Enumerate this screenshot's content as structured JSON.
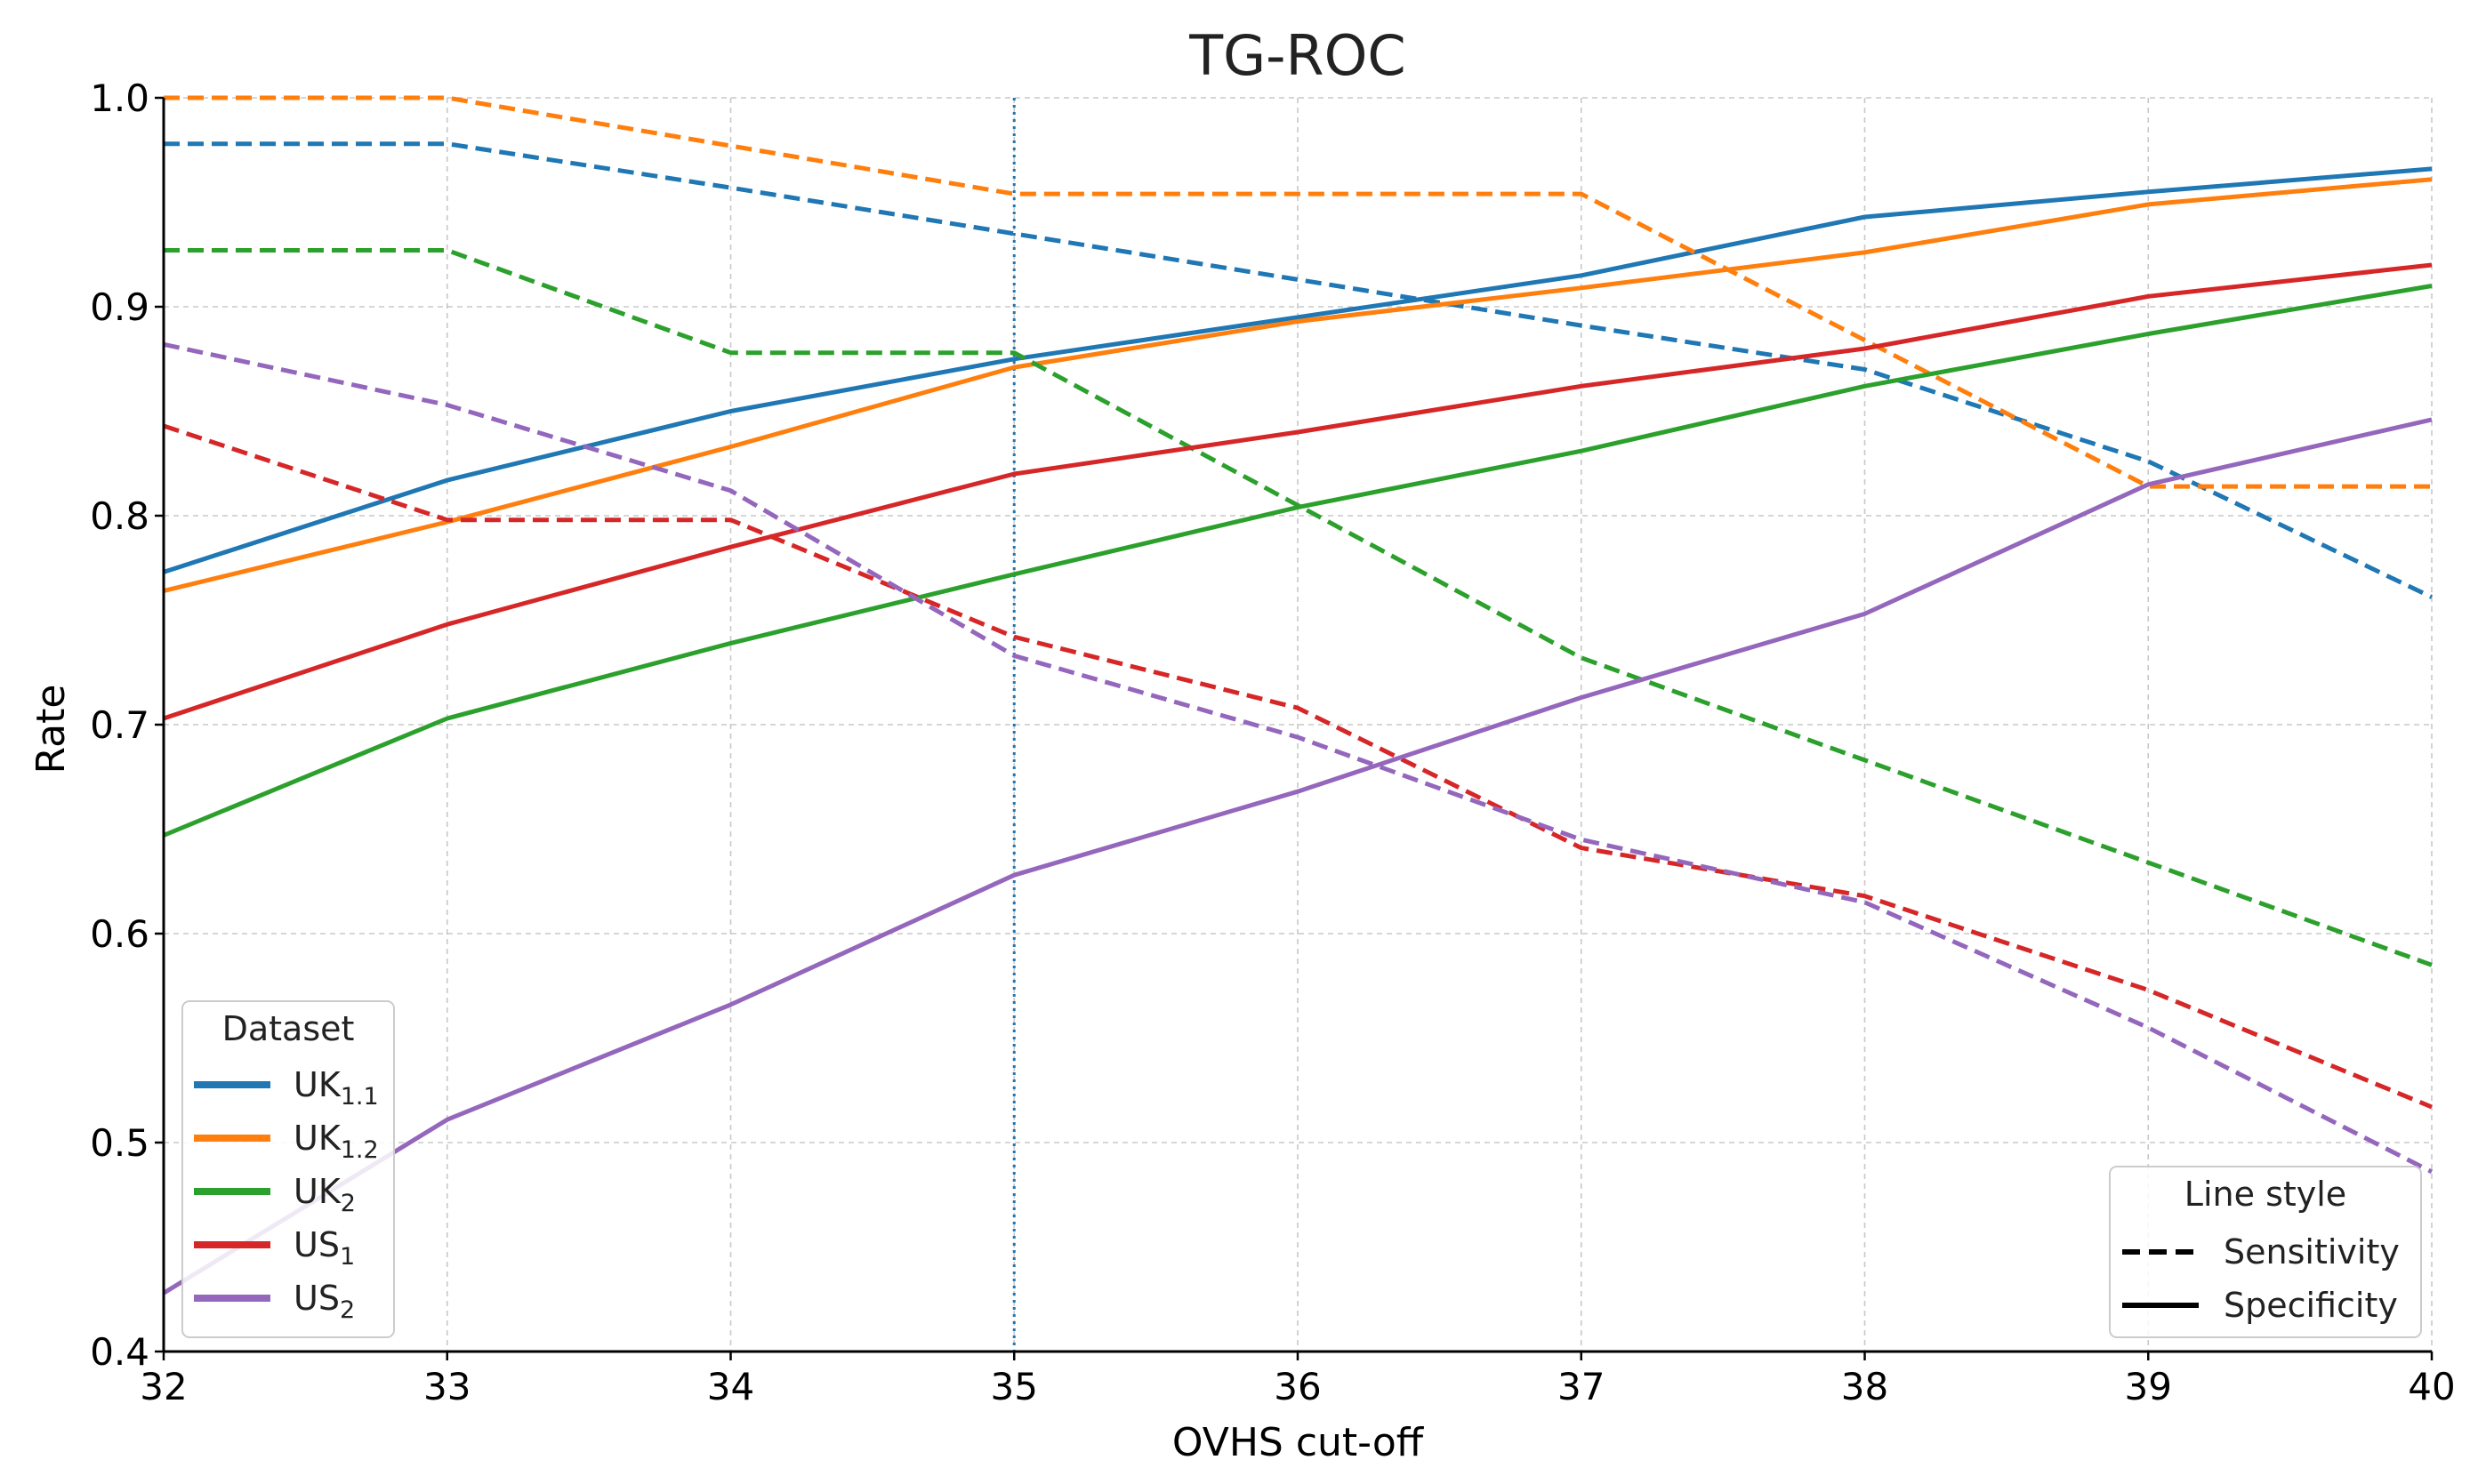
{
  "chart_data": {
    "type": "line",
    "title": "TG-ROC",
    "xlabel": "OVHS cut-off",
    "ylabel": "Rate",
    "x": [
      32,
      33,
      34,
      35,
      36,
      37,
      38,
      39,
      40
    ],
    "xlim": [
      32,
      40
    ],
    "ylim": [
      0.4,
      1.0
    ],
    "x_ticks": [
      "32",
      "33",
      "34",
      "35",
      "36",
      "37",
      "38",
      "39",
      "40"
    ],
    "y_ticks": [
      {
        "value": 0.4,
        "label": "0.4"
      },
      {
        "value": 0.5,
        "label": "0.5"
      },
      {
        "value": 0.6,
        "label": "0.6"
      },
      {
        "value": 0.7,
        "label": "0.7"
      },
      {
        "value": 0.8,
        "label": "0.8"
      },
      {
        "value": 0.9,
        "label": "0.9"
      },
      {
        "value": 1.0,
        "label": "1.0"
      }
    ],
    "grid": true,
    "reference_line": {
      "x": 35,
      "color": "#1f77b4",
      "style": "dotted"
    },
    "datasets": [
      {
        "key": "uk-1-1",
        "name_main": "UK",
        "name_sub": "1.1",
        "color": "#1f77b4",
        "sensitivity": [
          0.978,
          0.978,
          0.957,
          0.935,
          0.913,
          0.891,
          0.87,
          0.826,
          0.761
        ],
        "specificity": [
          0.773,
          0.817,
          0.85,
          0.875,
          0.895,
          0.915,
          0.943,
          0.955,
          0.966
        ]
      },
      {
        "key": "uk-1-2",
        "name_main": "UK",
        "name_sub": "1.2",
        "color": "#ff7f0e",
        "sensitivity": [
          1.0,
          1.0,
          0.977,
          0.954,
          0.954,
          0.954,
          0.884,
          0.814,
          0.814
        ],
        "specificity": [
          0.764,
          0.797,
          0.833,
          0.871,
          0.893,
          0.909,
          0.926,
          0.949,
          0.961
        ]
      },
      {
        "key": "uk-2",
        "name_main": "UK",
        "name_sub": "2",
        "color": "#2ca02c",
        "sensitivity": [
          0.927,
          0.927,
          0.878,
          0.878,
          0.805,
          0.732,
          0.683,
          0.634,
          0.585
        ],
        "specificity": [
          0.647,
          0.703,
          0.739,
          0.772,
          0.804,
          0.831,
          0.862,
          0.887,
          0.91
        ]
      },
      {
        "key": "us-1",
        "name_main": "US",
        "name_sub": "1",
        "color": "#d62728",
        "sensitivity": [
          0.843,
          0.798,
          0.798,
          0.742,
          0.708,
          0.641,
          0.618,
          0.573,
          0.517
        ],
        "specificity": [
          0.703,
          0.748,
          0.785,
          0.82,
          0.84,
          0.862,
          0.88,
          0.905,
          0.92
        ]
      },
      {
        "key": "us-2",
        "name_main": "US",
        "name_sub": "2",
        "color": "#9467bd",
        "sensitivity": [
          0.882,
          0.853,
          0.812,
          0.733,
          0.694,
          0.645,
          0.615,
          0.555,
          0.486
        ],
        "specificity": [
          0.428,
          0.511,
          0.566,
          0.628,
          0.668,
          0.713,
          0.753,
          0.815,
          0.846
        ]
      }
    ],
    "legend_dataset": {
      "title": "Dataset",
      "placement": "bottom-left"
    },
    "legend_style": {
      "title": "Line style",
      "placement": "bottom-right",
      "entries": [
        {
          "key": "sensitivity",
          "label": "Sensitivity",
          "dash": "dashed"
        },
        {
          "key": "specificity",
          "label": "Specificity",
          "dash": "solid"
        }
      ]
    }
  }
}
